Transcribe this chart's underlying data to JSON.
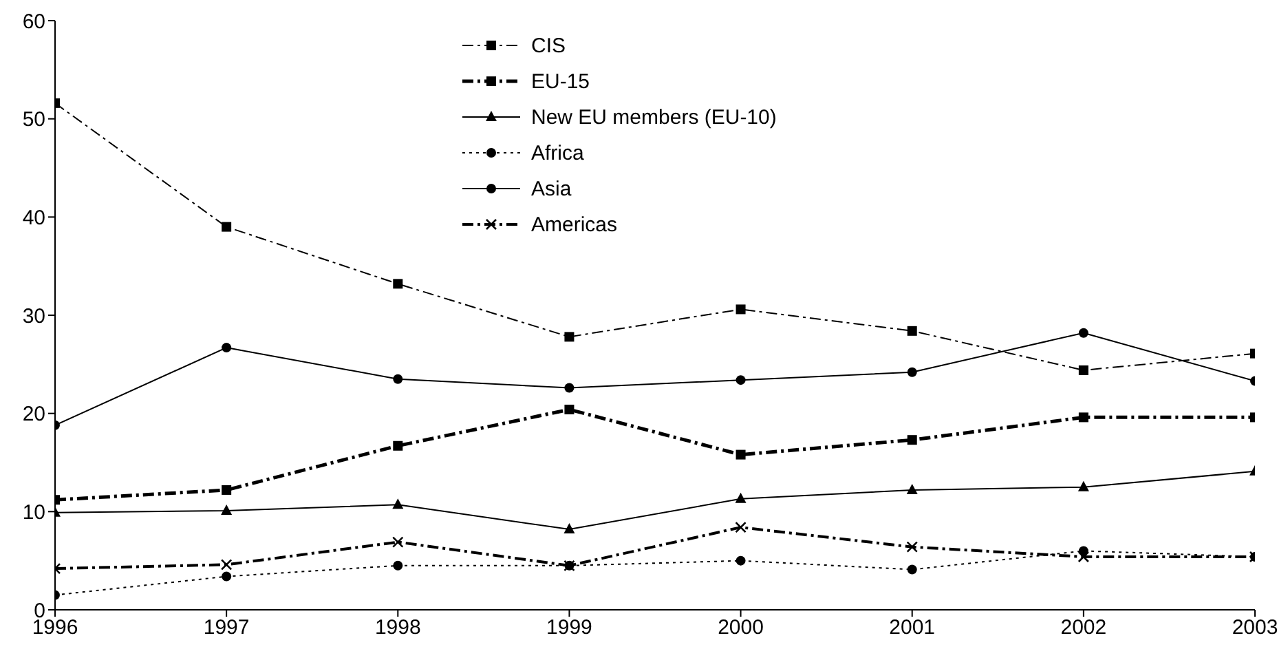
{
  "chart_data": {
    "type": "line",
    "x": [
      1996,
      1997,
      1998,
      1999,
      2000,
      2001,
      2002,
      2003
    ],
    "xlim": [
      1996,
      2003
    ],
    "xticks": [
      1996,
      1997,
      1998,
      1999,
      2000,
      2001,
      2002,
      2003
    ],
    "ylim": [
      0,
      60
    ],
    "yticks": [
      0,
      10,
      20,
      30,
      40,
      50,
      60
    ],
    "grid": false,
    "legend": "top",
    "series": [
      {
        "name": "CIS",
        "color": "#000000",
        "marker": "square",
        "line_style": "dashed",
        "values": [
          51.6,
          39.0,
          33.2,
          27.8,
          30.6,
          28.4,
          24.4,
          26.1
        ]
      },
      {
        "name": "EU-15",
        "color": "#000000",
        "marker": "square",
        "line_style": "dashed",
        "values": [
          11.2,
          12.2,
          16.7,
          20.4,
          15.8,
          17.3,
          19.6,
          19.6
        ]
      },
      {
        "name": "New EU members (EU-10)",
        "color": "#000000",
        "marker": "triangle",
        "line_style": "solid",
        "values": [
          9.9,
          10.1,
          10.7,
          8.2,
          11.3,
          12.2,
          12.5,
          14.1
        ]
      },
      {
        "name": "Africa",
        "color": "#000000",
        "marker": "circle",
        "line_style": "dotted",
        "values": [
          1.5,
          3.4,
          4.5,
          4.5,
          5.0,
          4.1,
          6.0,
          5.4
        ]
      },
      {
        "name": "Asia",
        "color": "#000000",
        "marker": "circle",
        "line_style": "solid",
        "values": [
          18.8,
          26.7,
          23.5,
          22.6,
          23.4,
          24.2,
          28.2,
          23.3
        ]
      },
      {
        "name": "Americas",
        "color": "#000000",
        "marker": "cross",
        "line_style": "dashed",
        "values": [
          4.2,
          4.6,
          6.9,
          4.5,
          8.4,
          6.4,
          5.4,
          5.4
        ]
      }
    ]
  }
}
